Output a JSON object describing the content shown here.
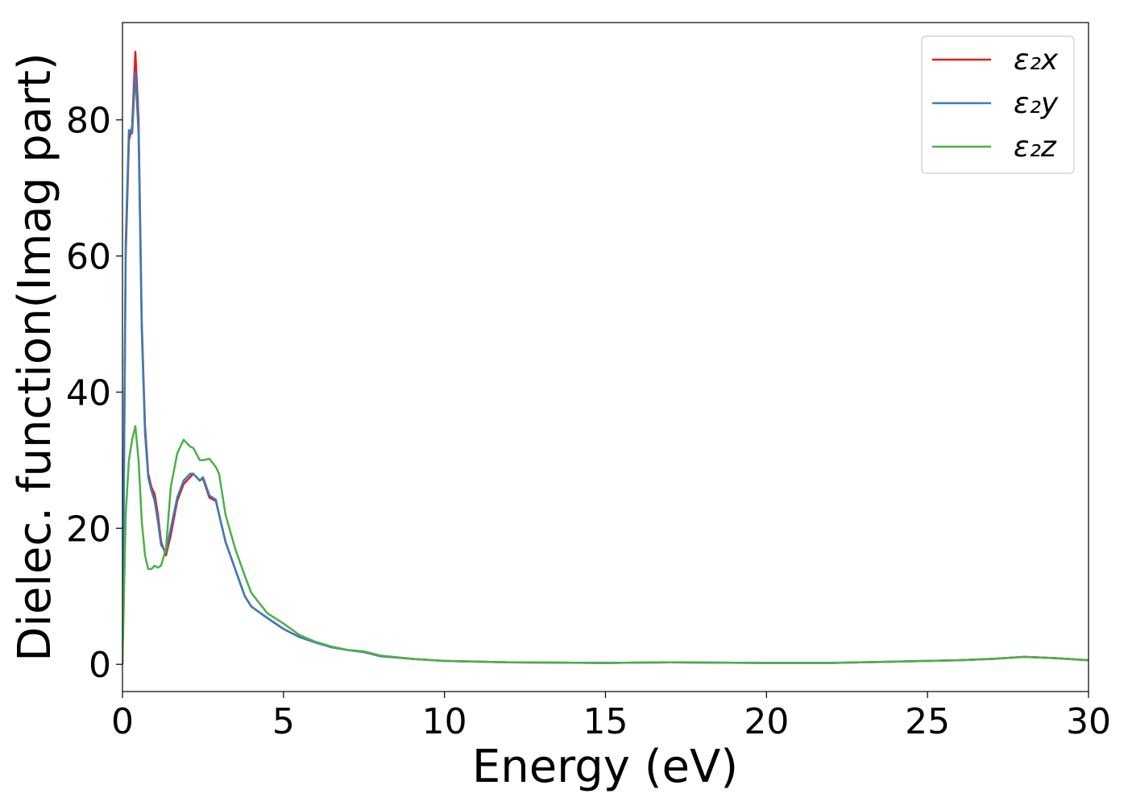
{
  "chart_data": {
    "type": "line",
    "xlabel": "Energy (eV)",
    "ylabel": "Dielec. function(Imag part)",
    "x": [
      0,
      0.1,
      0.2,
      0.3,
      0.4,
      0.5,
      0.6,
      0.7,
      0.8,
      0.9,
      1.0,
      1.1,
      1.2,
      1.35,
      1.5,
      1.7,
      1.9,
      2.1,
      2.2,
      2.4,
      2.5,
      2.7,
      2.9,
      3.0,
      3.2,
      3.5,
      3.8,
      4.0,
      4.5,
      5.0,
      5.5,
      6.0,
      6.5,
      7.0,
      7.5,
      8,
      9,
      10,
      12,
      15,
      17,
      20,
      22,
      24,
      25,
      26,
      27,
      28,
      28.5,
      29,
      30
    ],
    "series": [
      {
        "name": "ε₂x",
        "color": "#e41a1c",
        "values": [
          0,
          60,
          77,
          79,
          90,
          80,
          50,
          35,
          28,
          26,
          25,
          22,
          18,
          16,
          19,
          24,
          26.5,
          27.5,
          28,
          27,
          27.3,
          24.5,
          24,
          22,
          18,
          14,
          10,
          8.5,
          6.8,
          5.2,
          4,
          3.2,
          2.5,
          2.1,
          1.8,
          1.2,
          0.8,
          0.5,
          0.3,
          0.2,
          0.3,
          0.2,
          0.2,
          0.4,
          0.5,
          0.6,
          0.8,
          1.1,
          1.0,
          0.9,
          0.6
        ]
      },
      {
        "name": "ε₂y",
        "color": "#377eb8",
        "values": [
          0,
          62,
          78.5,
          78,
          87,
          78,
          49,
          34,
          27.5,
          25.5,
          24,
          21,
          17.5,
          16.5,
          20,
          24.5,
          27,
          28,
          28,
          27,
          27.5,
          24.8,
          24.2,
          22,
          18,
          14,
          10,
          8.5,
          6.8,
          5.2,
          4,
          3.2,
          2.5,
          2.1,
          1.8,
          1.2,
          0.8,
          0.5,
          0.3,
          0.2,
          0.3,
          0.2,
          0.2,
          0.4,
          0.5,
          0.6,
          0.8,
          1.1,
          1.0,
          0.9,
          0.6
        ]
      },
      {
        "name": "ε₂z",
        "color": "#4daf4a",
        "values": [
          0,
          22,
          30,
          33,
          35,
          30,
          21,
          16,
          14,
          14,
          14.5,
          14.2,
          14.5,
          17,
          26,
          31,
          33,
          32,
          31.8,
          30,
          30,
          30.2,
          29,
          28,
          22,
          17,
          13,
          10.5,
          7.5,
          6,
          4.3,
          3.3,
          2.6,
          2.1,
          1.9,
          1.3,
          0.8,
          0.5,
          0.3,
          0.2,
          0.3,
          0.2,
          0.2,
          0.4,
          0.5,
          0.6,
          0.8,
          1.1,
          1.0,
          0.9,
          0.6
        ]
      }
    ],
    "xlim": [
      0,
      30
    ],
    "xticks": [
      0,
      5,
      10,
      15,
      20,
      25,
      30
    ],
    "ylim": [
      -4,
      94.3
    ],
    "yticks": [
      0,
      20,
      40,
      60,
      80
    ],
    "legend": "upper right"
  }
}
